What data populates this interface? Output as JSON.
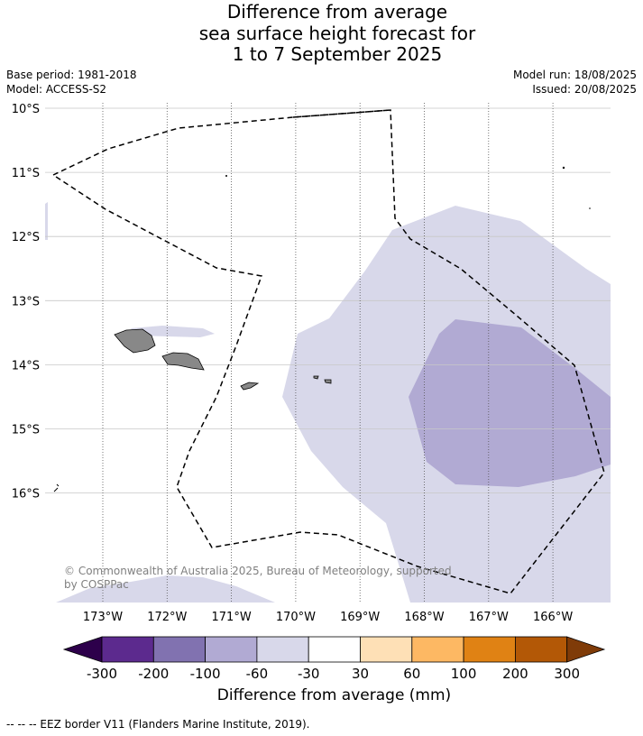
{
  "title": {
    "line1": "Difference from average",
    "line2": "sea surface height forecast for",
    "line3": "1 to 7 September 2025"
  },
  "meta": {
    "base_period": "Base period: 1981-2018",
    "model": "Model: ACCESS-S2",
    "model_run": "Model run: 18/08/2025",
    "issued": "Issued: 20/08/2025"
  },
  "map": {
    "lat_labels": [
      "10°S",
      "11°S",
      "12°S",
      "13°S",
      "14°S",
      "15°S",
      "16°S"
    ],
    "lon_labels": [
      "173°W",
      "172°W",
      "171°W",
      "170°W",
      "169°W",
      "168°W",
      "167°W",
      "166°W"
    ],
    "land_color": "#888888",
    "copyright": "© Commonwealth of Australia 2025, Bureau of Meteorology, supported by COSPPac"
  },
  "colorbar": {
    "ticks": [
      "-300",
      "-200",
      "-100",
      "-60",
      "-30",
      "30",
      "60",
      "100",
      "200",
      "300"
    ],
    "colors": [
      "#2d004b",
      "#5c2a8e",
      "#8172b0",
      "#b1aad3",
      "#d8d8ea",
      "#ffffff",
      "#fee0b6",
      "#fdb863",
      "#e08214",
      "#b35806",
      "#7f3b08"
    ],
    "label": "Difference from average (mm)"
  },
  "footer": "--  --  -- EEZ border V11 (Flanders Marine Institute, 2019)."
}
